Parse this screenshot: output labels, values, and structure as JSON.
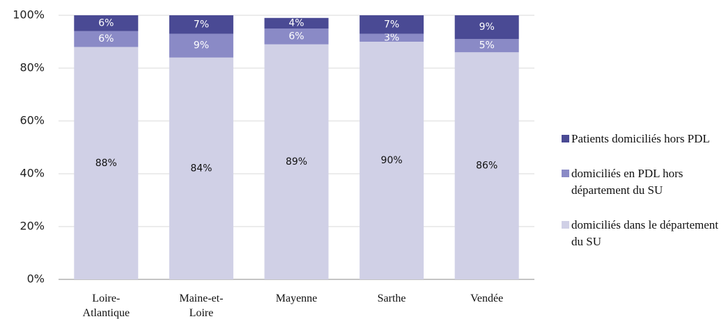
{
  "chart_data": {
    "type": "stacked_bar",
    "categories": [
      "Loire-Atlantique",
      "Maine-et-Loire",
      "Mayenne",
      "Sarthe",
      "Vendée"
    ],
    "series": [
      {
        "name": "domiciliés dans le département du SU",
        "color": "#d0d0e6",
        "values": [
          88,
          84,
          89,
          90,
          86
        ],
        "value_labels": [
          "88%",
          "84%",
          "89%",
          "90%",
          "86%"
        ]
      },
      {
        "name": "domiciliés en PDL hors département du SU",
        "color": "#8a8ac6",
        "values": [
          6,
          9,
          6,
          3,
          5
        ],
        "value_labels": [
          "6%",
          "9%",
          "6%",
          "3%",
          "5%"
        ]
      },
      {
        "name": "Patients domiciliés hors PDL",
        "color": "#4a4a94",
        "values": [
          6,
          7,
          4,
          7,
          9
        ],
        "value_labels": [
          "6%",
          "7%",
          "4%",
          "7%",
          "9%"
        ]
      }
    ],
    "ylim": [
      0,
      100
    ],
    "yticks": [
      {
        "value": 0,
        "label": "0%"
      },
      {
        "value": 20,
        "label": "20%"
      },
      {
        "value": 40,
        "label": "40%"
      },
      {
        "value": 60,
        "label": "60%"
      },
      {
        "value": 80,
        "label": "80%"
      },
      {
        "value": 100,
        "label": "100%"
      }
    ],
    "grid": true,
    "legend": "right"
  }
}
